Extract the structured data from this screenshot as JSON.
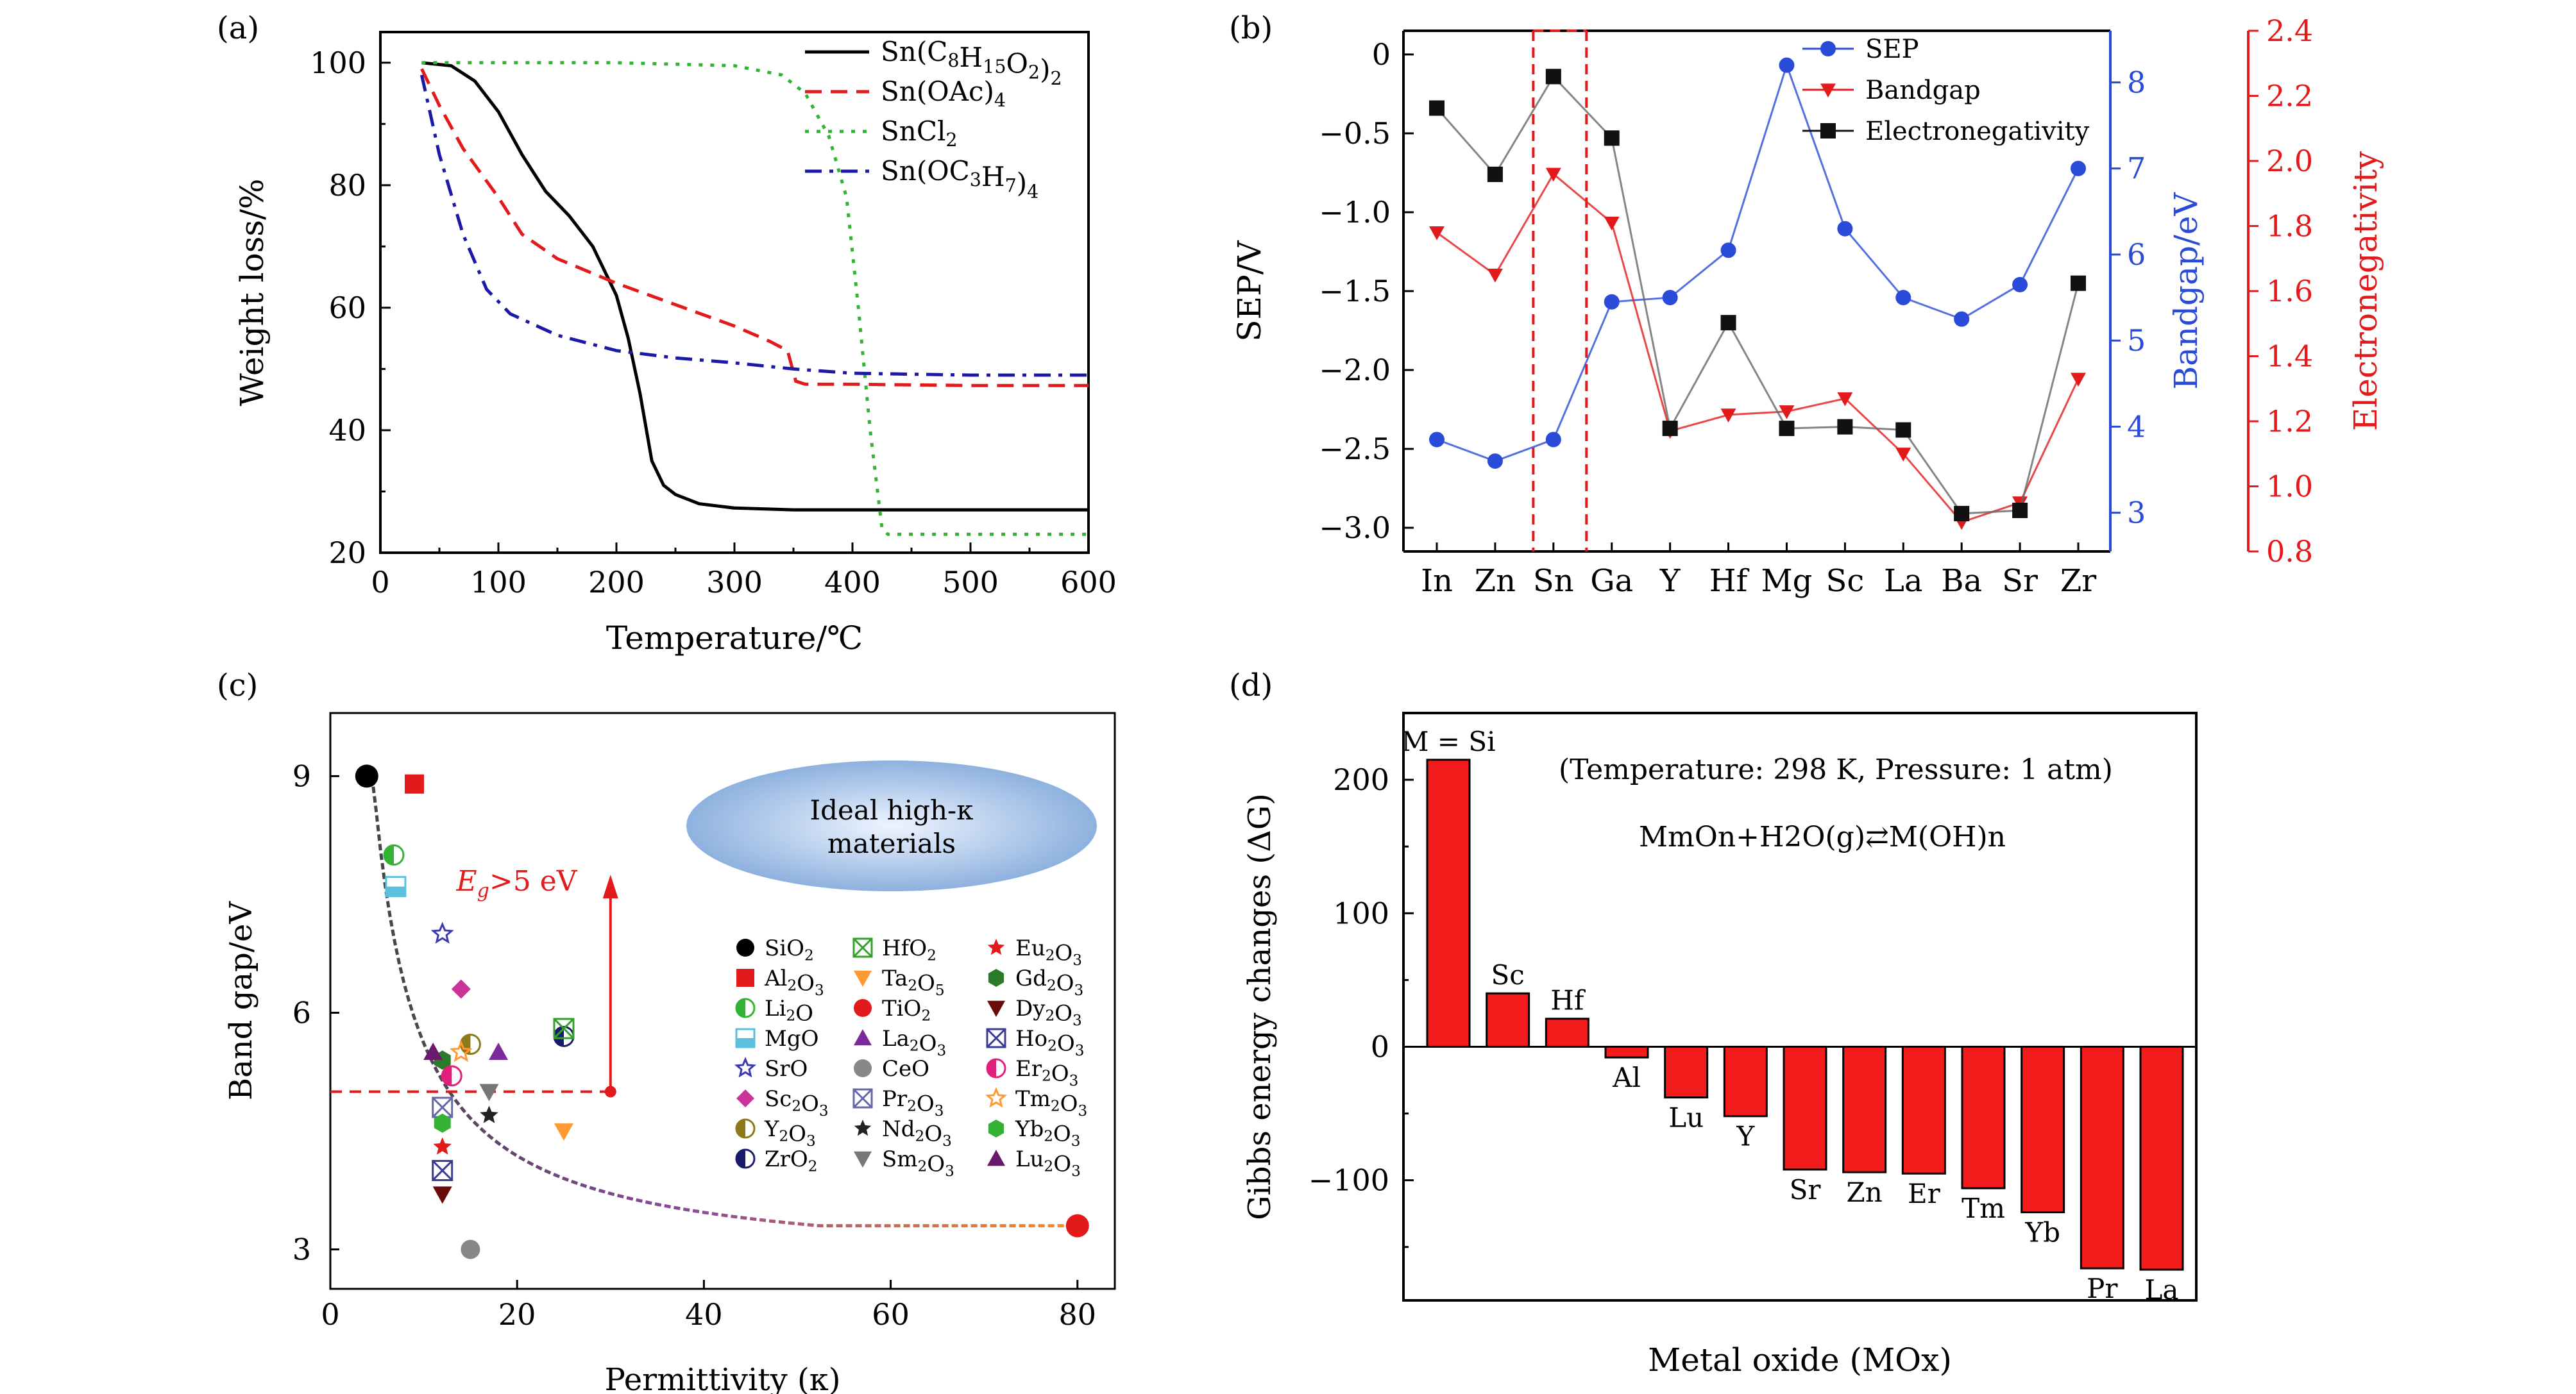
{
  "panels": [
    "(a)",
    "(b)",
    "(c)",
    "(d)"
  ],
  "chart_data": [
    {
      "panel": "(a)",
      "type": "line",
      "xlabel": "Temperature/℃",
      "ylabel": "Weight loss/%",
      "xlim": [
        0,
        600
      ],
      "ylim": [
        20,
        105
      ],
      "xticks": [
        0,
        100,
        200,
        300,
        400,
        500,
        600
      ],
      "yticks": [
        20,
        40,
        60,
        80,
        100
      ],
      "legend_position": "top-right",
      "series": [
        {
          "name": "Sn(C8H15O2)2",
          "legend_base": "Sn(C",
          "legend_parts": [
            [
              "8",
              "sub"
            ],
            [
              "H",
              ""
            ],
            [
              "15",
              "sub"
            ],
            [
              "O",
              ""
            ],
            [
              "2",
              "sub"
            ],
            [
              ")",
              ""
            ],
            [
              "2",
              "sub"
            ]
          ],
          "color": "#000000",
          "dash": "solid",
          "x": [
            35,
            60,
            80,
            100,
            120,
            140,
            160,
            180,
            200,
            210,
            220,
            230,
            240,
            250,
            270,
            300,
            350,
            400,
            500,
            600
          ],
          "y": [
            100,
            99.5,
            97,
            92,
            85,
            79,
            75,
            70,
            62,
            55,
            46,
            35,
            31,
            29.5,
            28,
            27.3,
            27,
            27,
            27,
            27
          ]
        },
        {
          "name": "Sn(OAc)4",
          "legend_base": "Sn(OAc)",
          "legend_parts": [
            [
              "4",
              "sub"
            ]
          ],
          "color": "#e31a1c",
          "dash": "dashed",
          "x": [
            35,
            50,
            70,
            100,
            120,
            150,
            200,
            250,
            300,
            330,
            345,
            352,
            360,
            400,
            500,
            600
          ],
          "y": [
            99,
            93,
            86,
            78,
            72,
            68,
            64,
            60.5,
            57,
            54.5,
            53,
            48,
            47.5,
            47.5,
            47.3,
            47.3
          ]
        },
        {
          "name": "SnCl2",
          "legend_base": "SnCl",
          "legend_parts": [
            [
              "2",
              "sub"
            ]
          ],
          "color": "#33b233",
          "dash": "dotted",
          "x": [
            35,
            60,
            100,
            200,
            300,
            340,
            360,
            380,
            395,
            405,
            415,
            425,
            430,
            450,
            500,
            600
          ],
          "y": [
            100,
            100,
            100,
            100,
            99.5,
            98,
            95,
            88,
            78,
            60,
            40,
            24,
            23,
            23,
            23,
            23
          ]
        },
        {
          "name": "Sn(OC3H7)4",
          "legend_base": "Sn(OC",
          "legend_parts": [
            [
              "3",
              "sub"
            ],
            [
              "H",
              ""
            ],
            [
              "7",
              "sub"
            ],
            [
              ")",
              ""
            ],
            [
              "4",
              "sub"
            ]
          ],
          "color": "#1a1aa6",
          "dash": "dashdot",
          "x": [
            35,
            50,
            70,
            90,
            110,
            150,
            200,
            250,
            300,
            350,
            400,
            500,
            600
          ],
          "y": [
            98,
            85,
            72,
            63,
            59,
            55.5,
            53,
            51.8,
            51,
            50,
            49.3,
            49,
            49
          ]
        }
      ]
    },
    {
      "panel": "(b)",
      "type": "line",
      "ylabel": "SEP/V",
      "ylabel_right_1": "Bandgap/eV",
      "ylabel_right_2": "Electronegativity",
      "categories": [
        "In",
        "Zn",
        "Sn",
        "Ga",
        "Y",
        "Hf",
        "Mg",
        "Sc",
        "La",
        "Ba",
        "Sr",
        "Zr"
      ],
      "ylim_left": [
        -3.15,
        0.15
      ],
      "yticks_left": [
        0,
        -0.5,
        -1.0,
        -1.5,
        -2.0,
        -2.5,
        -3.0
      ],
      "ytick_labels_left": [
        "0",
        "−0.5",
        "−1.0",
        "−1.5",
        "−2.0",
        "−2.5",
        "−3.0"
      ],
      "ylim_bandgap": [
        2.55,
        8.6
      ],
      "yticks_bandgap": [
        3,
        4,
        5,
        6,
        7,
        8
      ],
      "ylim_electronegativity": [
        0.8,
        2.4
      ],
      "yticks_electronegativity": [
        "0.8",
        "1.0",
        "1.2",
        "1.4",
        "1.6",
        "1.8",
        "2.0",
        "2.2",
        "2.4"
      ],
      "highlight_band": [
        "Zn",
        "Sn",
        "Ga"
      ],
      "legend_position": "top-right",
      "series": [
        {
          "name": "SEP",
          "color": "#2a4bd7",
          "marker": "circle",
          "axis": "bandgap",
          "values": [
            3.85,
            3.6,
            3.85,
            5.45,
            5.5,
            6.05,
            8.2,
            6.3,
            5.5,
            5.25,
            5.65,
            7.0
          ]
        },
        {
          "name": "Bandgap",
          "color": "#e31a1c",
          "marker": "triangle-down",
          "axis": "electronegativity",
          "values": [
            1.78,
            1.65,
            1.96,
            1.81,
            1.17,
            1.22,
            1.23,
            1.27,
            1.1,
            0.89,
            0.95,
            1.33
          ]
        },
        {
          "name": "Electronegativity",
          "color": "#111111",
          "marker": "square",
          "axis": "left",
          "values": [
            -0.34,
            -0.76,
            -0.14,
            -0.53,
            -2.37,
            -1.7,
            -2.37,
            -2.36,
            -2.38,
            -2.91,
            -2.89,
            -1.45
          ]
        }
      ]
    },
    {
      "panel": "(c)",
      "type": "scatter",
      "xlabel": "Permittivity (κ)",
      "ylabel": "Band gap/eV",
      "xlim": [
        0,
        84
      ],
      "ylim": [
        2.5,
        9.8
      ],
      "xticks": [
        0,
        20,
        40,
        60,
        80
      ],
      "yticks": [
        3,
        6,
        9
      ],
      "annotation": "Eg>5 eV",
      "ellipse_text": [
        "Ideal high-κ",
        "materials"
      ],
      "points": [
        {
          "name": "SiO2",
          "k": 3.9,
          "eg": 9.0,
          "marker": "circle",
          "color": "#000000"
        },
        {
          "name": "Al2O3",
          "k": 9,
          "eg": 8.9,
          "marker": "square",
          "color": "#e31a1c"
        },
        {
          "name": "Li2O",
          "k": 6.8,
          "eg": 8.0,
          "marker": "halfcircle",
          "color": "#33b233"
        },
        {
          "name": "MgO",
          "k": 7,
          "eg": 7.6,
          "marker": "halfsquare",
          "color": "#5bc0de"
        },
        {
          "name": "SrO",
          "k": 12,
          "eg": 7.0,
          "marker": "star-outline",
          "color": "#3a3ab0"
        },
        {
          "name": "Sc2O3",
          "k": 14,
          "eg": 6.3,
          "marker": "diamond",
          "color": "#cc3399"
        },
        {
          "name": "Y2O3",
          "k": 15,
          "eg": 5.6,
          "marker": "halfcircle",
          "color": "#8a7a1a"
        },
        {
          "name": "ZrO2",
          "k": 25,
          "eg": 5.7,
          "marker": "halfcircle",
          "color": "#1a1a6a"
        },
        {
          "name": "HfO2",
          "k": 25,
          "eg": 5.8,
          "marker": "xbox",
          "color": "#33a02c"
        },
        {
          "name": "Ta2O5",
          "k": 25,
          "eg": 4.5,
          "marker": "triangle-down",
          "color": "#ff9933"
        },
        {
          "name": "TiO2",
          "k": 80,
          "eg": 3.3,
          "marker": "circle",
          "color": "#e31a1c"
        },
        {
          "name": "La2O3",
          "k": 18,
          "eg": 5.5,
          "marker": "triangle",
          "color": "#7a2a9a"
        },
        {
          "name": "CeO",
          "k": 15,
          "eg": 3.0,
          "marker": "circle",
          "color": "#888888"
        },
        {
          "name": "Pr2O3",
          "k": 12,
          "eg": 4.8,
          "marker": "xbox",
          "color": "#6666aa"
        },
        {
          "name": "Nd2O3",
          "k": 17,
          "eg": 4.7,
          "marker": "star",
          "color": "#222222"
        },
        {
          "name": "Sm2O3",
          "k": 17,
          "eg": 5.0,
          "marker": "triangle-down",
          "color": "#777777"
        },
        {
          "name": "Eu2O3",
          "k": 12,
          "eg": 4.3,
          "marker": "star",
          "color": "#e31a1c"
        },
        {
          "name": "Gd2O3",
          "k": 12,
          "eg": 5.4,
          "marker": "hexagon",
          "color": "#2a7a2a"
        },
        {
          "name": "Dy2O3",
          "k": 12,
          "eg": 3.7,
          "marker": "triangle-down",
          "color": "#6a0a0a"
        },
        {
          "name": "Ho2O3",
          "k": 12,
          "eg": 4.0,
          "marker": "xbox",
          "color": "#3a3a9a"
        },
        {
          "name": "Er2O3",
          "k": 13,
          "eg": 5.2,
          "marker": "halfcircle",
          "color": "#e0207a"
        },
        {
          "name": "Tm2O3",
          "k": 14,
          "eg": 5.5,
          "marker": "star-outline",
          "color": "#ff9933"
        },
        {
          "name": "Yb2O3",
          "k": 12,
          "eg": 4.6,
          "marker": "hexagon",
          "color": "#33b233"
        },
        {
          "name": "Lu2O3",
          "k": 11,
          "eg": 5.5,
          "marker": "triangle",
          "color": "#6a1a6a"
        }
      ],
      "legend_columns": [
        [
          [
            "SiO",
            [
              [
                "2",
                "sub"
              ]
            ]
          ],
          [
            "Al",
            [
              [
                "2",
                "sub"
              ],
              [
                "O",
                ""
              ],
              [
                "3",
                "sub"
              ]
            ]
          ],
          [
            "Li",
            [
              [
                "2",
                "sub"
              ],
              [
                "O",
                ""
              ]
            ]
          ],
          [
            "MgO",
            []
          ],
          [
            "SrO",
            []
          ],
          [
            "Sc",
            [
              [
                "2",
                "sub"
              ],
              [
                "O",
                ""
              ],
              [
                "3",
                "sub"
              ]
            ]
          ],
          [
            "Y",
            [
              [
                "2",
                "sub"
              ],
              [
                "O",
                ""
              ],
              [
                "3",
                "sub"
              ]
            ]
          ],
          [
            "ZrO",
            [
              [
                "2",
                "sub"
              ]
            ]
          ]
        ],
        [
          [
            "HfO",
            [
              [
                "2",
                "sub"
              ]
            ]
          ],
          [
            "Ta",
            [
              [
                "2",
                "sub"
              ],
              [
                "O",
                ""
              ],
              [
                "5",
                "sub"
              ]
            ]
          ],
          [
            "TiO",
            [
              [
                "2",
                "sub"
              ]
            ]
          ],
          [
            "La",
            [
              [
                "2",
                "sub"
              ],
              [
                "O",
                ""
              ],
              [
                "3",
                "sub"
              ]
            ]
          ],
          [
            "CeO",
            []
          ],
          [
            "Pr",
            [
              [
                "2",
                "sub"
              ],
              [
                "O",
                ""
              ],
              [
                "3",
                "sub"
              ]
            ]
          ],
          [
            "Nd",
            [
              [
                "2",
                "sub"
              ],
              [
                "O",
                ""
              ],
              [
                "3",
                "sub"
              ]
            ]
          ],
          [
            "Sm",
            [
              [
                "2",
                "sub"
              ],
              [
                "O",
                ""
              ],
              [
                "3",
                "sub"
              ]
            ]
          ]
        ],
        [
          [
            "Eu",
            [
              [
                "2",
                "sub"
              ],
              [
                "O",
                ""
              ],
              [
                "3",
                "sub"
              ]
            ]
          ],
          [
            "Gd",
            [
              [
                "2",
                "sub"
              ],
              [
                "O",
                ""
              ],
              [
                "3",
                "sub"
              ]
            ]
          ],
          [
            "Dy",
            [
              [
                "2",
                "sub"
              ],
              [
                "O",
                ""
              ],
              [
                "3",
                "sub"
              ]
            ]
          ],
          [
            "Ho",
            [
              [
                "2",
                "sub"
              ],
              [
                "O",
                ""
              ],
              [
                "3",
                "sub"
              ]
            ]
          ],
          [
            "Er",
            [
              [
                "2",
                "sub"
              ],
              [
                "O",
                ""
              ],
              [
                "3",
                "sub"
              ]
            ]
          ],
          [
            "Tm",
            [
              [
                "2",
                "sub"
              ],
              [
                "O",
                ""
              ],
              [
                "3",
                "sub"
              ]
            ]
          ],
          [
            "Yb",
            [
              [
                "2",
                "sub"
              ],
              [
                "O",
                ""
              ],
              [
                "3",
                "sub"
              ]
            ]
          ],
          [
            "Lu",
            [
              [
                "2",
                "sub"
              ],
              [
                "O",
                ""
              ],
              [
                "3",
                "sub"
              ]
            ]
          ]
        ]
      ],
      "legend_markers": [
        [
          "circle",
          "square",
          "halfcircle",
          "halfsquare",
          "star-outline",
          "diamond",
          "halfcircle",
          "halfcircle"
        ],
        [
          "xbox",
          "triangle-down",
          "circle",
          "triangle",
          "circle",
          "xbox",
          "star",
          "triangle-down"
        ],
        [
          "star",
          "hexagon",
          "triangle-down",
          "xbox",
          "halfcircle",
          "star-outline",
          "hexagon",
          "triangle"
        ]
      ],
      "legend_colors": [
        [
          "#000000",
          "#e31a1c",
          "#33b233",
          "#5bc0de",
          "#3a3ab0",
          "#cc3399",
          "#8a7a1a",
          "#1a1a6a"
        ],
        [
          "#33a02c",
          "#ff9933",
          "#e31a1c",
          "#7a2a9a",
          "#888888",
          "#6666aa",
          "#222222",
          "#777777"
        ],
        [
          "#e31a1c",
          "#2a7a2a",
          "#6a0a0a",
          "#3a3a9a",
          "#e0207a",
          "#ff9933",
          "#33b233",
          "#6a1a6a"
        ]
      ]
    },
    {
      "panel": "(d)",
      "type": "bar",
      "xlabel": "Metal oxide (MOx)",
      "ylabel": "Gibbs energy changes (ΔG)",
      "categories": [
        "M = Si",
        "Sc",
        "Hf",
        "Al",
        "Lu",
        "Y",
        "Sr",
        "Zn",
        "Er",
        "Tm",
        "Yb",
        "Pr",
        "La"
      ],
      "values": [
        215,
        40,
        21,
        -8,
        -38,
        -52,
        -92,
        -94,
        -95,
        -106,
        -124,
        -166,
        -167
      ],
      "ylim": [
        -190,
        250
      ],
      "yticks": [
        200,
        100,
        0,
        -100
      ],
      "ytick_labels": [
        "200",
        "100",
        "0",
        "−100"
      ],
      "annotation_1": "(Temperature: 298 K, Pressure: 1 atm)",
      "annotation_2": "MmOn+H2O(g)⇄M(OH)n",
      "bar_color": "#f21c1c"
    }
  ]
}
